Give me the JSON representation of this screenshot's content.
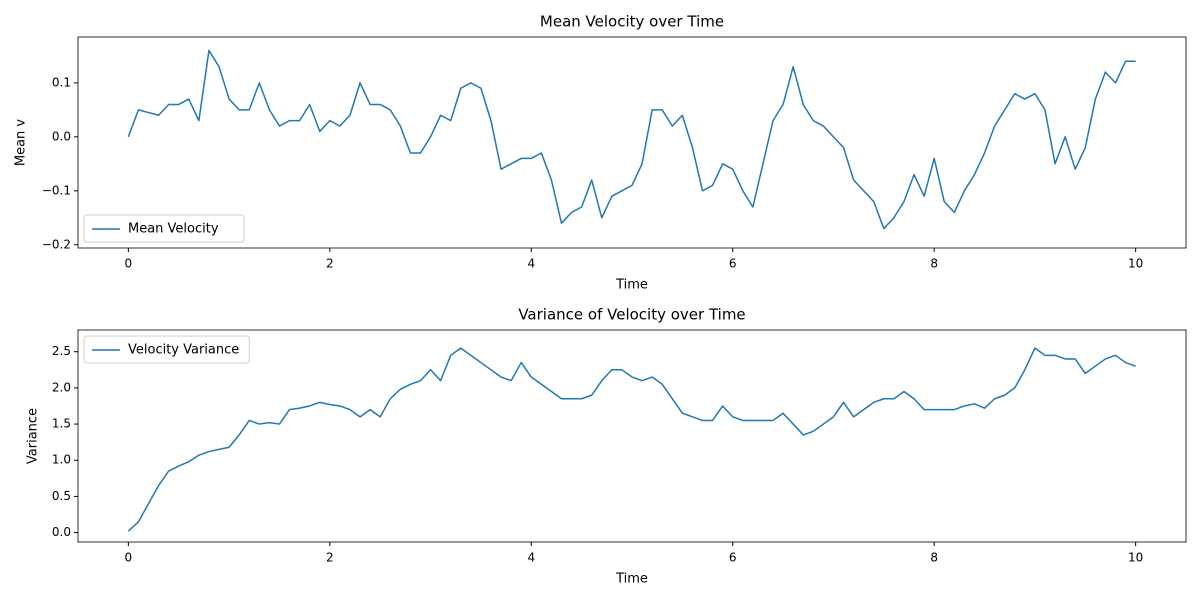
{
  "chart_data": [
    {
      "type": "line",
      "title": "Mean Velocity over Time",
      "x_label": "Time",
      "y_label": "Mean v",
      "x": [
        0,
        0.1,
        0.2,
        0.3,
        0.4,
        0.5,
        0.6,
        0.7,
        0.8,
        0.9,
        1,
        1.1,
        1.2,
        1.3,
        1.4,
        1.5,
        1.6,
        1.7,
        1.8,
        1.9,
        2,
        2.1,
        2.2,
        2.3,
        2.4,
        2.5,
        2.6,
        2.7,
        2.8,
        2.9,
        3,
        3.1,
        3.2,
        3.3,
        3.4,
        3.5,
        3.6,
        3.7,
        3.8,
        3.9,
        4,
        4.1,
        4.2,
        4.3,
        4.4,
        4.5,
        4.6,
        4.7,
        4.8,
        4.9,
        5,
        5.1,
        5.2,
        5.3,
        5.4,
        5.5,
        5.6,
        5.7,
        5.8,
        5.9,
        6,
        6.1,
        6.2,
        6.3,
        6.4,
        6.5,
        6.6,
        6.7,
        6.8,
        6.9,
        7,
        7.1,
        7.2,
        7.3,
        7.4,
        7.5,
        7.6,
        7.7,
        7.8,
        7.9,
        8,
        8.1,
        8.2,
        8.3,
        8.4,
        8.5,
        8.6,
        8.7,
        8.8,
        8.9,
        9,
        9.1,
        9.2,
        9.3,
        9.4,
        9.5,
        9.6,
        9.7,
        9.8,
        9.9,
        10
      ],
      "series": [
        {
          "name": "Mean Velocity",
          "color": "#1f77b4",
          "values": [
            0,
            0.05,
            0.045,
            0.04,
            0.06,
            0.06,
            0.07,
            0.03,
            0.16,
            0.13,
            0.07,
            0.05,
            0.05,
            0.1,
            0.05,
            0.02,
            0.03,
            0.03,
            0.06,
            0.01,
            0.03,
            0.02,
            0.04,
            0.1,
            0.06,
            0.06,
            0.05,
            0.02,
            -0.03,
            -0.03,
            0.0,
            0.04,
            0.03,
            0.09,
            0.1,
            0.09,
            0.03,
            -0.06,
            -0.05,
            -0.04,
            -0.04,
            -0.03,
            -0.08,
            -0.16,
            -0.14,
            -0.13,
            -0.08,
            -0.15,
            -0.11,
            -0.1,
            -0.09,
            -0.05,
            0.05,
            0.05,
            0.02,
            0.04,
            -0.02,
            -0.1,
            -0.09,
            -0.05,
            -0.06,
            -0.1,
            -0.13,
            -0.05,
            0.03,
            0.06,
            0.13,
            0.06,
            0.03,
            0.02,
            0.0,
            -0.02,
            -0.08,
            -0.1,
            -0.12,
            -0.17,
            -0.15,
            -0.12,
            -0.07,
            -0.11,
            -0.04,
            -0.12,
            -0.14,
            -0.1,
            -0.07,
            -0.03,
            0.02,
            0.05,
            0.08,
            0.07,
            0.08,
            0.05,
            -0.05,
            0.0,
            -0.06,
            -0.02,
            0.07,
            0.12,
            0.1,
            0.14,
            0.14
          ]
        }
      ],
      "xlim": [
        -0.5,
        10.5
      ],
      "xticks": [
        0,
        2,
        4,
        6,
        8,
        10
      ],
      "ylim": [
        -0.206,
        0.185
      ],
      "yticks": [
        {
          "value": -0.2,
          "label": "−0.2"
        },
        {
          "value": -0.1,
          "label": "−0.1"
        },
        {
          "value": 0,
          "label": "0.0"
        },
        0.1
      ],
      "legend": "lower left",
      "grid": false
    },
    {
      "type": "line",
      "title": "Variance of Velocity over Time",
      "x_label": "Time",
      "y_label": "Variance",
      "x": [
        0,
        0.1,
        0.2,
        0.3,
        0.4,
        0.5,
        0.6,
        0.7,
        0.8,
        0.9,
        1,
        1.1,
        1.2,
        1.3,
        1.4,
        1.5,
        1.6,
        1.7,
        1.8,
        1.9,
        2,
        2.1,
        2.2,
        2.3,
        2.4,
        2.5,
        2.6,
        2.7,
        2.8,
        2.9,
        3,
        3.1,
        3.2,
        3.3,
        3.4,
        3.5,
        3.6,
        3.7,
        3.8,
        3.9,
        4,
        4.1,
        4.2,
        4.3,
        4.4,
        4.5,
        4.6,
        4.7,
        4.8,
        4.9,
        5,
        5.1,
        5.2,
        5.3,
        5.4,
        5.5,
        5.6,
        5.7,
        5.8,
        5.9,
        6,
        6.1,
        6.2,
        6.3,
        6.4,
        6.5,
        6.6,
        6.7,
        6.8,
        6.9,
        7,
        7.1,
        7.2,
        7.3,
        7.4,
        7.5,
        7.6,
        7.7,
        7.8,
        7.9,
        8,
        8.1,
        8.2,
        8.3,
        8.4,
        8.5,
        8.6,
        8.7,
        8.8,
        8.9,
        9,
        9.1,
        9.2,
        9.3,
        9.4,
        9.5,
        9.6,
        9.7,
        9.8,
        9.9,
        10
      ],
      "series": [
        {
          "name": "Velocity Variance",
          "color": "#1f77b4",
          "values": [
            0.02,
            0.15,
            0.4,
            0.65,
            0.85,
            0.92,
            0.98,
            1.07,
            1.12,
            1.15,
            1.18,
            1.35,
            1.55,
            1.5,
            1.52,
            1.5,
            1.7,
            1.72,
            1.75,
            1.8,
            1.77,
            1.75,
            1.7,
            1.6,
            1.7,
            1.6,
            1.85,
            1.98,
            2.05,
            2.1,
            2.25,
            2.1,
            2.45,
            2.55,
            2.45,
            2.35,
            2.25,
            2.15,
            2.1,
            2.35,
            2.15,
            2.05,
            1.95,
            1.85,
            1.85,
            1.85,
            1.9,
            2.1,
            2.25,
            2.25,
            2.15,
            2.1,
            2.15,
            2.05,
            1.85,
            1.65,
            1.6,
            1.55,
            1.55,
            1.75,
            1.6,
            1.55,
            1.55,
            1.55,
            1.55,
            1.65,
            1.5,
            1.35,
            1.4,
            1.5,
            1.6,
            1.8,
            1.6,
            1.7,
            1.8,
            1.85,
            1.85,
            1.95,
            1.85,
            1.7,
            1.7,
            1.7,
            1.7,
            1.75,
            1.78,
            1.72,
            1.85,
            1.9,
            2.0,
            2.25,
            2.55,
            2.45,
            2.45,
            2.4,
            2.4,
            2.2,
            2.3,
            2.4,
            2.45,
            2.35,
            2.3
          ]
        }
      ],
      "xlim": [
        -0.5,
        10.5
      ],
      "xticks": [
        0,
        2,
        4,
        6,
        8,
        10
      ],
      "ylim": [
        -0.13,
        2.8
      ],
      "yticks": [
        {
          "value": 0,
          "label": "0.0"
        },
        0.5,
        {
          "value": 1,
          "label": "1.0"
        },
        1.5,
        {
          "value": 2,
          "label": "2.0"
        },
        2.5
      ],
      "legend": "upper left",
      "grid": false
    }
  ]
}
